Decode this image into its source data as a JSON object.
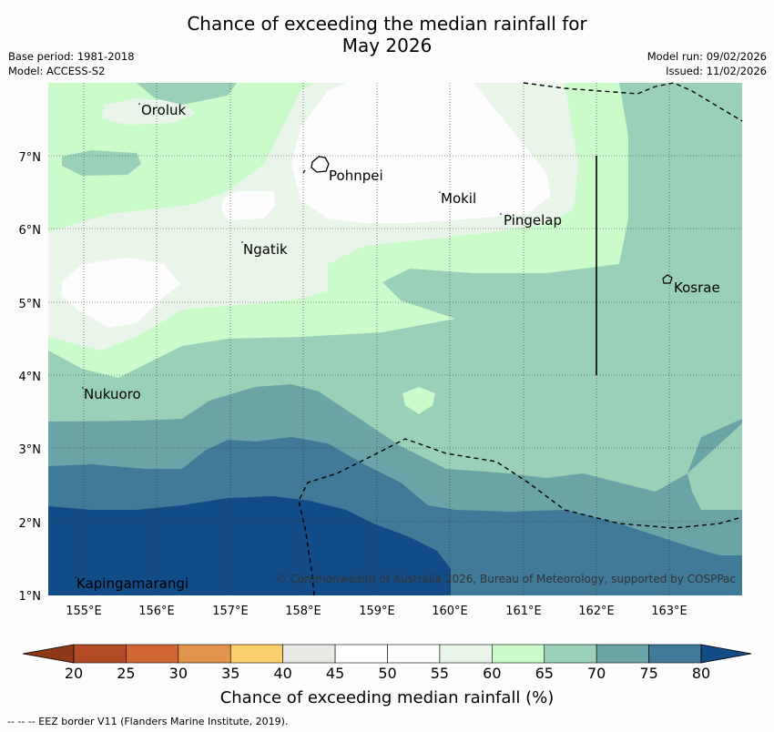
{
  "title": {
    "line1": "Chance of exceeding the median rainfall for",
    "line2": "May 2026"
  },
  "meta": {
    "base_period": "Base period: 1981-2018",
    "model": "Model: ACCESS-S2",
    "model_run": "Model run: 09/02/2026",
    "issued": "Issued: 11/02/2026"
  },
  "map": {
    "lat_labels": [
      "7°N",
      "6°N",
      "5°N",
      "4°N",
      "3°N",
      "2°N",
      "1°N"
    ],
    "lon_labels": [
      "155°E",
      "156°E",
      "157°E",
      "158°E",
      "159°E",
      "160°E",
      "161°E",
      "162°E",
      "163°E"
    ],
    "places": {
      "oroluk": "Oroluk",
      "pohnpei": "Pohnpei",
      "mokil": "Mokil",
      "pingelap": "Pingelap",
      "ngatik": "Ngatik",
      "kosrae": "Kosrae",
      "nukuoro": "Nukuoro",
      "kapingamarangi": "Kapingamarangi"
    },
    "copyright": "© Commonwealth of Australia 2026, Bureau of Meteorology, supported by COSPPac"
  },
  "colorbar": {
    "ticks": [
      "20",
      "25",
      "30",
      "35",
      "40",
      "45",
      "50",
      "55",
      "60",
      "65",
      "70",
      "75",
      "80"
    ],
    "title": "Chance of exceeding median rainfall (%)",
    "colors": {
      "below_20": "#8e3a19",
      "c20_25": "#b24a26",
      "c25_30": "#cf6634",
      "c30_35": "#e2944c",
      "c35_40": "#fccf6d",
      "c40_45": "#e8e8e4",
      "c45_50": "#ffffff",
      "c50_55": "#fcfdfc",
      "c55_60": "#e9f5e9",
      "c60_65": "#cbfbcb",
      "c65_70": "#9bd0b8",
      "c70_75": "#6ba4a7",
      "c75_80": "#3f7a98",
      "above_80": "#124c87"
    }
  },
  "footnote": "--  --  -- EEZ border V11 (Flanders Marine Institute, 2019)."
}
